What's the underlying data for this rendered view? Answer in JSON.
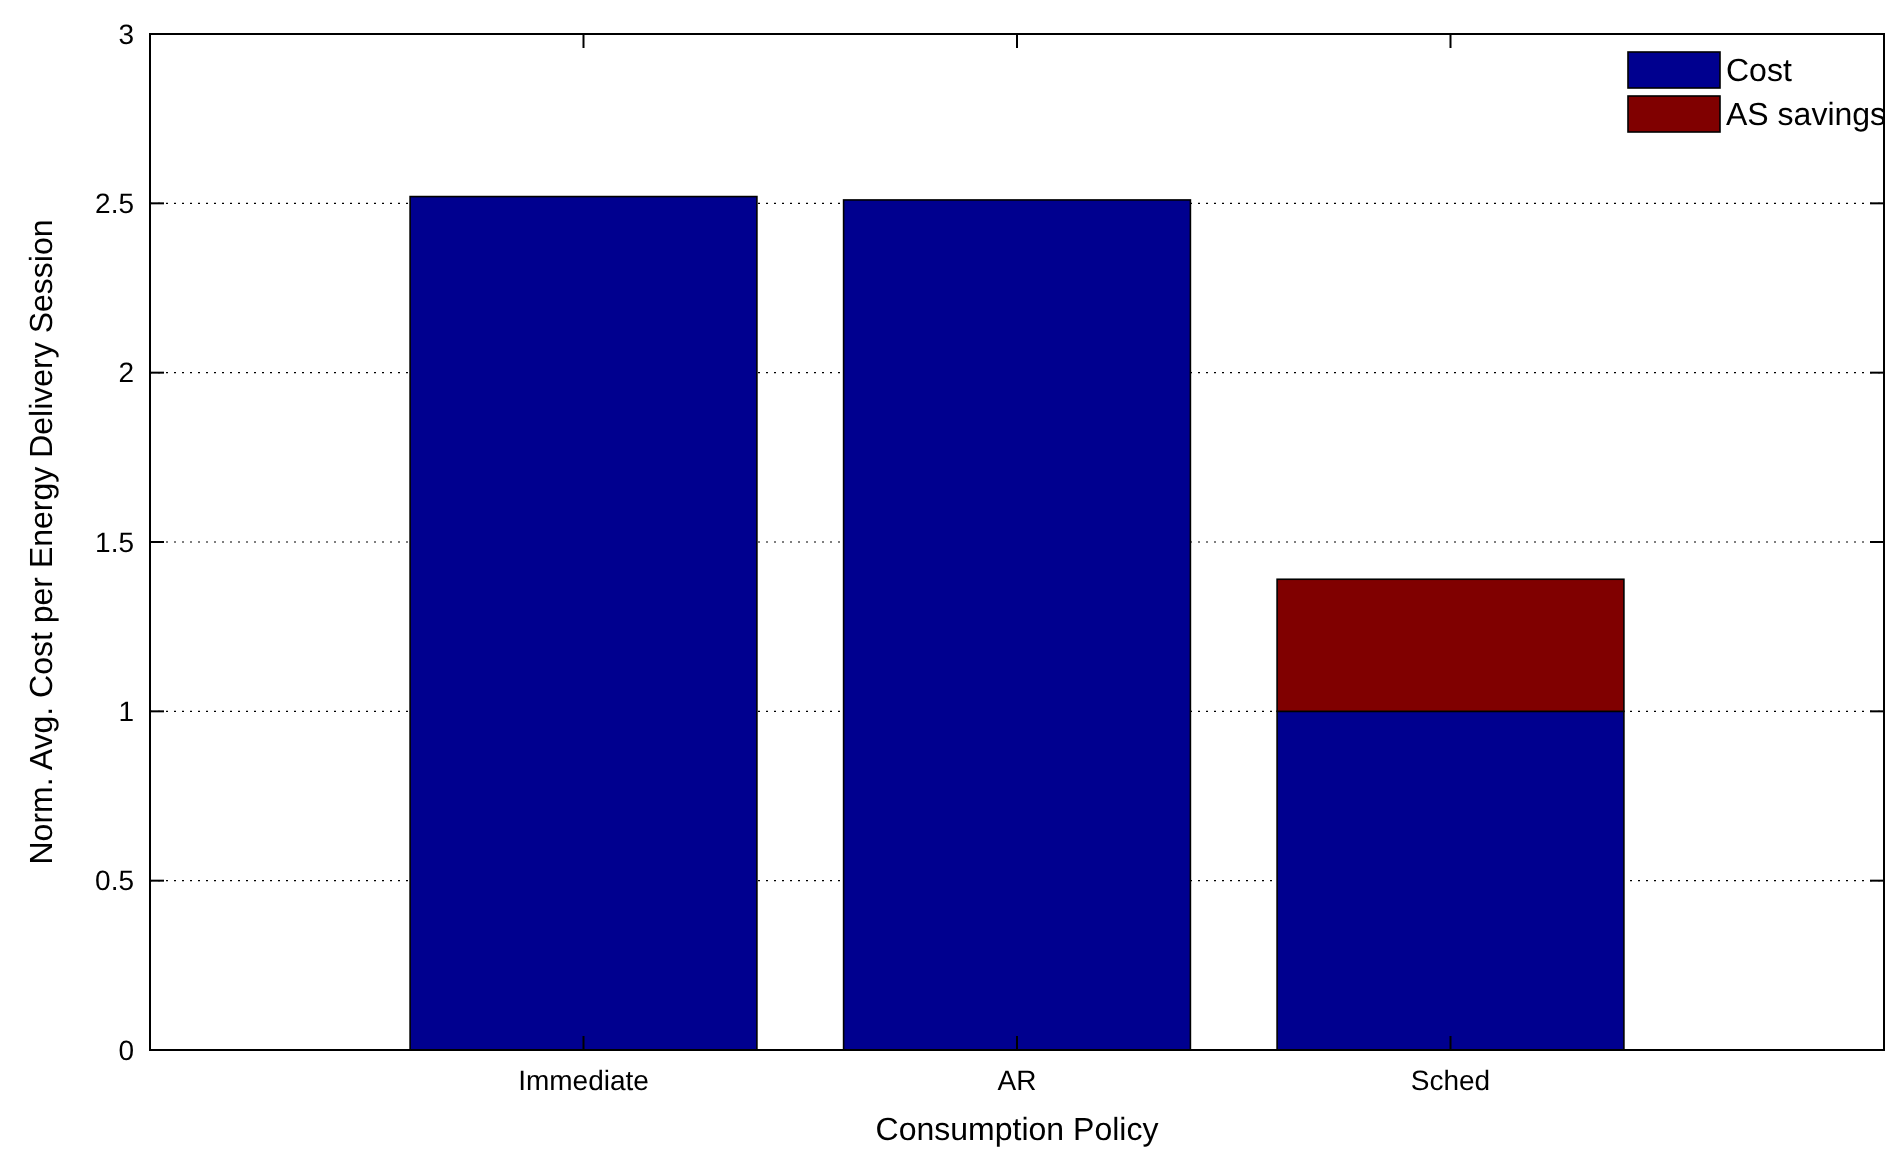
{
  "chart_data": {
    "type": "bar",
    "stacked": true,
    "xlabel": "Consumption Policy",
    "ylabel": "Norm. Avg. Cost per Energy Delivery Session",
    "categories": [
      "Immediate",
      "AR",
      "Sched"
    ],
    "series": [
      {
        "name": "Cost",
        "color": "#00008f",
        "values": [
          2.52,
          2.51,
          1.0
        ]
      },
      {
        "name": "AS savings",
        "color": "#800000",
        "values": [
          null,
          null,
          0.39
        ]
      }
    ],
    "ylim": [
      0,
      3
    ],
    "yticks": [
      0,
      0.5,
      1,
      1.5,
      2,
      2.5,
      3
    ],
    "grid": "y",
    "legend": "top right"
  }
}
